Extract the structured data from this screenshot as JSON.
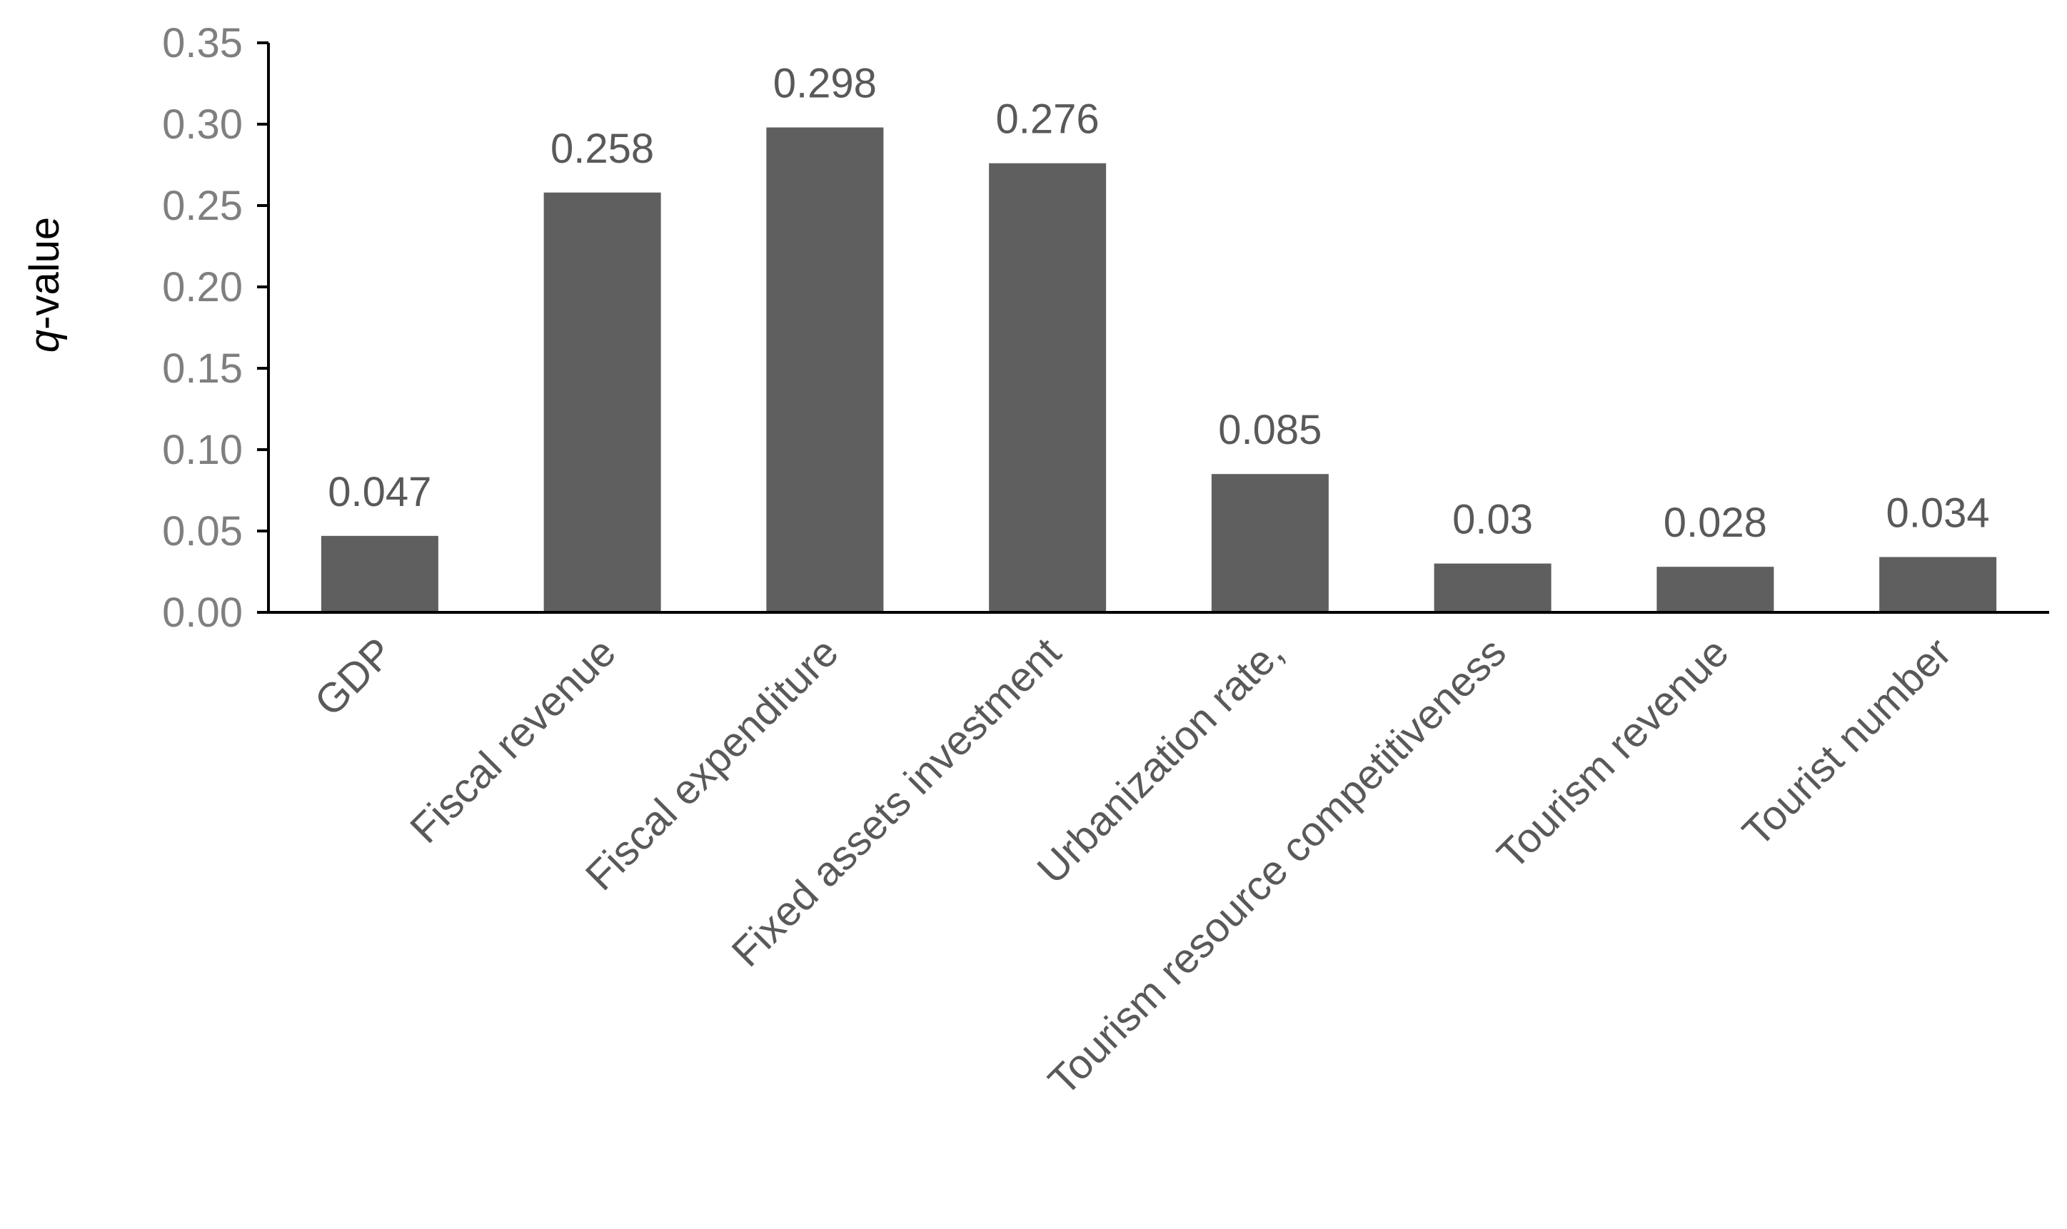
{
  "chart_data": {
    "type": "bar",
    "title": "",
    "xlabel": "",
    "ylabel": {
      "italic_part": "q",
      "rest": "-value"
    },
    "categories": [
      "GDP",
      "Fiscal revenue",
      "Fiscal expenditure",
      "Fixed assets investment",
      "Urbanization rate,",
      "Tourism resource competitiveness",
      "Tourism revenue",
      "Tourist number"
    ],
    "values": [
      0.047,
      0.258,
      0.298,
      0.276,
      0.085,
      0.03,
      0.028,
      0.034
    ],
    "data_labels": [
      "0.047",
      "0.258",
      "0.298",
      "0.276",
      "0.085",
      "0.03",
      "0.028",
      "0.034"
    ],
    "ylim": [
      0,
      0.35
    ],
    "yticks": [
      0.0,
      0.05,
      0.1,
      0.15,
      0.2,
      0.25,
      0.3,
      0.35
    ],
    "ytick_labels": [
      "0.00",
      "0.05",
      "0.10",
      "0.15",
      "0.20",
      "0.25",
      "0.30",
      "0.35"
    ],
    "grid": false,
    "legend": "none",
    "colors": {
      "bar": "#5f5f5f",
      "axis": "#000000",
      "tick_label": "#7f7f7f",
      "label_text": "#595959"
    }
  }
}
